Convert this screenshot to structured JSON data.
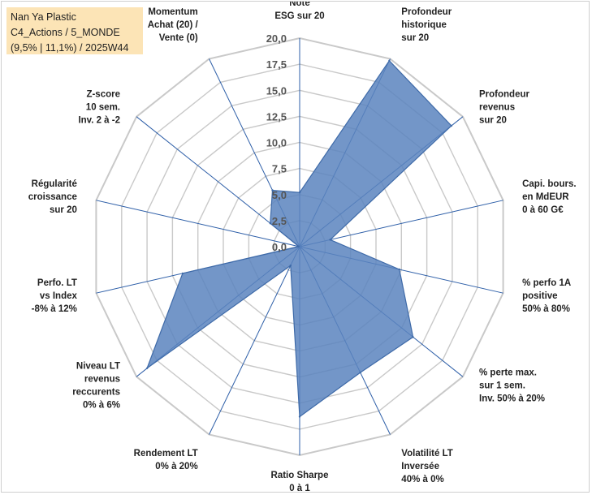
{
  "header": {
    "line1": "Nan Ya Plastic",
    "line2": "C4_Actions / 5_MONDE",
    "line3": "(9,5% | 11,1%) / 2025W44"
  },
  "colors": {
    "fill": "#5b84be",
    "stroke": "#3e6aa8",
    "grid": "#c9c9c9",
    "spoke": "#2e5fa8",
    "title_bg": "#fce4b6"
  },
  "chart_data": {
    "type": "radar",
    "rmin": 0,
    "rmax": 20,
    "tick_step": 2.5,
    "tick_labels": [
      "0,0",
      "2,5",
      "5,0",
      "7,5",
      "10,0",
      "12,5",
      "15,0",
      "17,5",
      "20,0"
    ],
    "axes": [
      [
        "Note",
        "ESG sur 20"
      ],
      [
        "Profondeur",
        "historique",
        "sur 20"
      ],
      [
        "Profondeur",
        "revenus",
        "sur 20"
      ],
      [
        "Capi. bours.",
        "en MdEUR",
        "0 à 60 G€"
      ],
      [
        "% perfo 1A",
        "positive",
        "50% à 80%"
      ],
      [
        "% perte max.",
        "sur 1 sem.",
        "Inv. 50% à 20%"
      ],
      [
        "Volatilité LT",
        "Inversée",
        "40% à 0%"
      ],
      [
        "Ratio Sharpe",
        "0 à 1"
      ],
      [
        "Rendement LT",
        "0% à 20%"
      ],
      [
        "Niveau LT",
        "revenus",
        "reccurents",
        "0% à 6%"
      ],
      [
        "Perfo. LT",
        "vs Index",
        "-8% à 12%"
      ],
      [
        "Régularité",
        "croissance",
        "sur 20"
      ],
      [
        "Z-score",
        "10 sem.",
        "Inv. 2 à -2"
      ],
      [
        "Momentum",
        "Achat (20) /",
        "Vente (0)"
      ]
    ],
    "values": [
      5.2,
      19.8,
      18.6,
      3.0,
      9.8,
      13.9,
      13.4,
      16.3,
      2.0,
      18.7,
      11.5,
      0.1,
      3.6,
      6.0
    ],
    "grid": true,
    "legend": "none"
  }
}
